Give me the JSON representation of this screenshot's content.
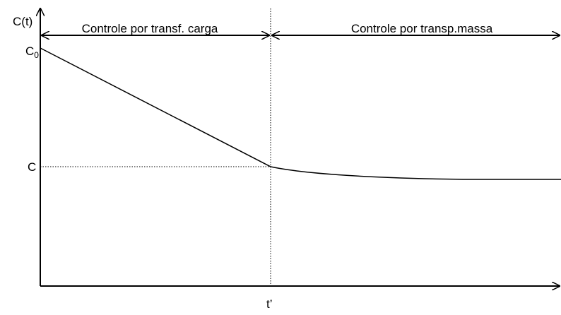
{
  "axis_label_y": "C(t)",
  "initial_level": {
    "symbol": "C",
    "subscript": "0"
  },
  "level_mark": "C",
  "time_mark": "t’",
  "regions": [
    "Controle por transf. carga",
    "Controle por transp.massa"
  ]
}
